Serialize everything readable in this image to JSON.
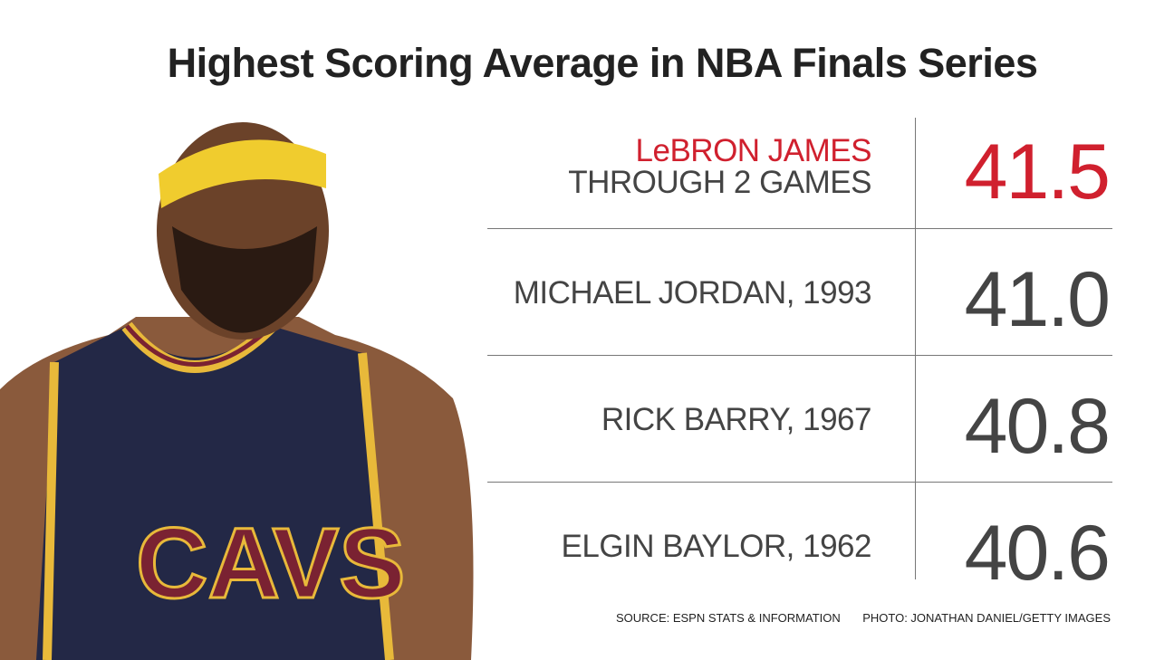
{
  "header": {
    "title": "Highest Scoring Average in NBA Finals Series"
  },
  "table": {
    "rows": [
      {
        "name": "LeBRON JAMES",
        "detail": "THROUGH 2 GAMES",
        "value": "41.5"
      },
      {
        "name": "MICHAEL JORDAN, 1993",
        "value": "41.0"
      },
      {
        "name": "RICK BARRY, 1967",
        "value": "40.8"
      },
      {
        "name": "ELGIN BAYLOR, 1962",
        "value": "40.6"
      }
    ]
  },
  "footer": {
    "source": "SOURCE: ESPN STATS & INFORMATION",
    "photo": "PHOTO: JONATHAN DANIEL/GETTY IMAGES"
  }
}
